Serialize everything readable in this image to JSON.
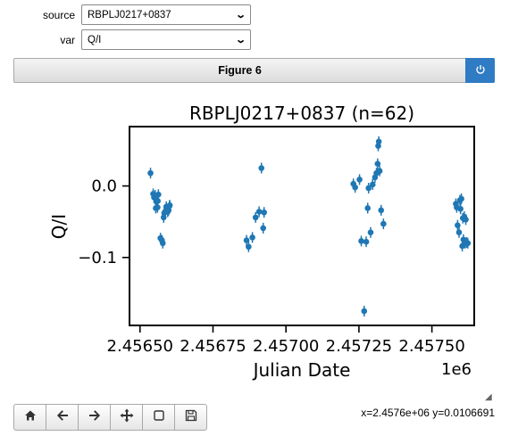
{
  "controls": {
    "source_label": "source",
    "source_value": "RBPLJ0217+0837",
    "var_label": "var",
    "var_value": "Q/I"
  },
  "figure": {
    "title": "Figure 6",
    "power_icon": "power-icon"
  },
  "status": {
    "coords": "x=2.4576e+06 y=0.0106691"
  },
  "toolbar": [
    "home-icon",
    "back-arrow-icon",
    "forward-arrow-icon",
    "pan-icon",
    "zoom-rect-icon",
    "save-icon"
  ],
  "chart_data": {
    "type": "scatter",
    "title": "RBPLJ0217+0837 (n=62)",
    "xlabel": "Julian Date",
    "ylabel": "Q/I",
    "x_offset_label": "1e6",
    "xlim": [
      2.456464,
      2.457645
    ],
    "ylim": [
      -0.195,
      0.083
    ],
    "xticks": [
      2.4565,
      2.45675,
      2.457,
      2.45725,
      2.4575
    ],
    "xtick_labels": [
      "2.45650",
      "2.45675",
      "2.45700",
      "2.45725",
      "2.45750"
    ],
    "yticks": [
      0.0,
      -0.1
    ],
    "ytick_labels": [
      "0.0",
      "−0.1"
    ],
    "color": "#1f77b4",
    "x": [
      2.456536,
      2.456545,
      2.456548,
      2.456552,
      2.456554,
      2.456556,
      2.456558,
      2.45656,
      2.456561,
      2.456563,
      2.45657,
      2.456575,
      2.456578,
      2.456581,
      2.456583,
      2.456586,
      2.45659,
      2.456595,
      2.456598,
      2.456601,
      2.456602,
      2.456865,
      2.456872,
      2.456885,
      2.456896,
      2.456908,
      2.456916,
      2.456922,
      2.456925,
      2.457231,
      2.457237,
      2.457252,
      2.457258,
      2.457268,
      2.457275,
      2.45728,
      2.457283,
      2.45729,
      2.457297,
      2.457305,
      2.45731,
      2.457314,
      2.457316,
      2.457318,
      2.457321,
      2.457326,
      2.457334,
      2.457582,
      2.457585,
      2.457588,
      2.457593,
      2.457596,
      2.457598,
      2.457601,
      2.457604,
      2.457606,
      2.457608,
      2.457611,
      2.457614,
      2.457616,
      2.457619,
      2.457623
    ],
    "y": [
      0.018,
      -0.011,
      -0.016,
      -0.013,
      -0.031,
      -0.022,
      -0.02,
      -0.03,
      -0.021,
      -0.012,
      -0.073,
      -0.076,
      -0.08,
      -0.044,
      -0.038,
      -0.036,
      -0.029,
      -0.036,
      -0.034,
      -0.028,
      -0.027,
      -0.076,
      -0.085,
      -0.072,
      -0.044,
      -0.036,
      0.025,
      -0.059,
      -0.037,
      0.003,
      -0.002,
      0.009,
      -0.077,
      -0.175,
      -0.078,
      -0.031,
      -0.003,
      -0.065,
      0.002,
      0.012,
      0.018,
      0.031,
      0.056,
      0.062,
      0.021,
      -0.034,
      -0.053,
      -0.025,
      -0.03,
      -0.055,
      -0.065,
      -0.02,
      -0.032,
      -0.018,
      -0.084,
      -0.045,
      -0.075,
      -0.043,
      -0.08,
      -0.047,
      -0.079,
      -0.08
    ]
  }
}
